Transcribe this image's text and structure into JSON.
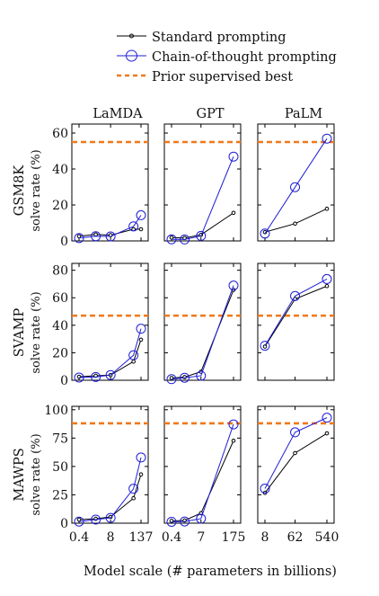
{
  "legend": {
    "items": [
      {
        "label": "Standard prompting",
        "color": "#000000",
        "style": "solid-small-marker"
      },
      {
        "label": "Chain-of-thought prompting",
        "color": "#1f1fd6",
        "style": "solid-large-marker"
      },
      {
        "label": "Prior supervised best",
        "color": "#f07818",
        "style": "dashed"
      }
    ]
  },
  "colors": {
    "standard": "#000000",
    "cot": "#1f1fd6",
    "prior": "#f07818"
  },
  "x_axis_label": "Model scale (# parameters in billions)",
  "columns": [
    {
      "title": "LaMDA",
      "x_ticks": [
        "0.4",
        "8",
        "137"
      ]
    },
    {
      "title": "GPT",
      "x_ticks": [
        "0.4",
        "7",
        "175"
      ]
    },
    {
      "title": "PaLM",
      "x_ticks": [
        "8",
        "62",
        "540"
      ]
    }
  ],
  "rows": [
    {
      "dataset": "GSM8K",
      "ylabel": "solve rate (%)",
      "ylim": [
        0,
        65
      ],
      "yticks": [
        "0",
        "20",
        "40",
        "60"
      ]
    },
    {
      "dataset": "SVAMP",
      "ylabel": "solve rate (%)",
      "ylim": [
        0,
        85
      ],
      "yticks": [
        "0",
        "20",
        "40",
        "60",
        "80"
      ]
    },
    {
      "dataset": "MAWPS",
      "ylabel": "solve rate (%)",
      "ylim": [
        0,
        103
      ],
      "yticks": [
        "0",
        "25",
        "50",
        "75",
        "100"
      ]
    }
  ],
  "chart_data": [
    {
      "type": "line",
      "row": "GSM8K",
      "column": "LaMDA",
      "x": [
        0.42,
        2,
        8,
        68,
        137
      ],
      "series": [
        {
          "name": "Standard prompting",
          "values": [
            2.6,
            3.6,
            3.2,
            6.5,
            6.5
          ]
        },
        {
          "name": "Chain-of-thought prompting",
          "values": [
            1.6,
            2.6,
            2.5,
            8.1,
            14.3
          ]
        }
      ],
      "prior_best": 55
    },
    {
      "type": "line",
      "row": "GSM8K",
      "column": "GPT",
      "x": [
        0.35,
        1.3,
        6.7,
        175
      ],
      "series": [
        {
          "name": "Standard prompting",
          "values": [
            1.9,
            1.6,
            3.4,
            15.6
          ]
        },
        {
          "name": "Chain-of-thought prompting",
          "values": [
            0.9,
            0.8,
            2.8,
            46.9
          ]
        }
      ],
      "prior_best": 55
    },
    {
      "type": "line",
      "row": "GSM8K",
      "column": "PaLM",
      "x": [
        8,
        62,
        540
      ],
      "series": [
        {
          "name": "Standard prompting",
          "values": [
            4.9,
            9.6,
            17.9
          ]
        },
        {
          "name": "Chain-of-thought prompting",
          "values": [
            4.1,
            29.9,
            56.9
          ]
        }
      ],
      "prior_best": 55
    },
    {
      "type": "line",
      "row": "SVAMP",
      "column": "LaMDA",
      "x": [
        0.42,
        2,
        8,
        68,
        137
      ],
      "series": [
        {
          "name": "Standard prompting",
          "values": [
            2.5,
            3.3,
            3.8,
            13.6,
            29.5
          ]
        },
        {
          "name": "Chain-of-thought prompting",
          "values": [
            2.0,
            2.4,
            3.8,
            18.2,
            37.5
          ]
        }
      ],
      "prior_best": 47
    },
    {
      "type": "line",
      "row": "SVAMP",
      "column": "GPT",
      "x": [
        0.35,
        1.3,
        6.7,
        175
      ],
      "series": [
        {
          "name": "Standard prompting",
          "values": [
            1.6,
            2.3,
            6.2,
            65.7
          ]
        },
        {
          "name": "Chain-of-thought prompting",
          "values": [
            0.8,
            1.8,
            3.3,
            68.9
          ]
        }
      ],
      "prior_best": 47
    },
    {
      "type": "line",
      "row": "SVAMP",
      "column": "PaLM",
      "x": [
        8,
        62,
        540
      ],
      "series": [
        {
          "name": "Standard prompting",
          "values": [
            24.5,
            59.1,
            68.5
          ]
        },
        {
          "name": "Chain-of-thought prompting",
          "values": [
            25.1,
            61.3,
            73.6
          ]
        }
      ],
      "prior_best": 47
    },
    {
      "type": "line",
      "row": "MAWPS",
      "column": "LaMDA",
      "x": [
        0.42,
        2,
        8,
        68,
        137
      ],
      "series": [
        {
          "name": "Standard prompting",
          "values": [
            3.2,
            3.9,
            5.5,
            22.0,
            43.0
          ]
        },
        {
          "name": "Chain-of-thought prompting",
          "values": [
            1.4,
            3.2,
            4.7,
            30.4,
            57.9
          ]
        }
      ],
      "prior_best": 88
    },
    {
      "type": "line",
      "row": "MAWPS",
      "column": "GPT",
      "x": [
        0.35,
        1.3,
        6.7,
        175
      ],
      "series": [
        {
          "name": "Standard prompting",
          "values": [
            2.0,
            2.4,
            8.8,
            72.7
          ]
        },
        {
          "name": "Chain-of-thought prompting",
          "values": [
            1.2,
            1.5,
            4.0,
            87.1
          ]
        }
      ],
      "prior_best": 88
    },
    {
      "type": "line",
      "row": "MAWPS",
      "column": "PaLM",
      "x": [
        8,
        62,
        540
      ],
      "series": [
        {
          "name": "Standard prompting",
          "values": [
            26.7,
            61.8,
            79.2
          ]
        },
        {
          "name": "Chain-of-thought prompting",
          "values": [
            30.5,
            80.1,
            93.0
          ]
        }
      ],
      "prior_best": 88
    }
  ]
}
